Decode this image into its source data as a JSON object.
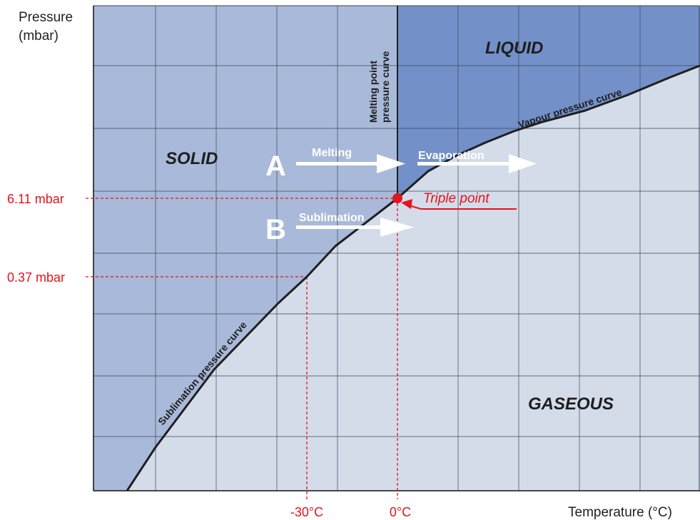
{
  "diagram": {
    "y_axis_title": [
      "Pressure",
      "(mbar)"
    ],
    "x_axis_title": "Temperature (°C)",
    "pressure_labels": [
      "6.11 mbar",
      "0.37 mbar"
    ],
    "temperature_labels": [
      "-30°C",
      "0°C"
    ],
    "regions": {
      "solid": "SOLID",
      "liquid": "LIQUID",
      "gaseous": "GASEOUS"
    },
    "curves": {
      "melting": [
        "Melting point",
        "pressure curve"
      ],
      "vapour": "Vapour pressure curve",
      "sublimation": "Sublimation pressure curve"
    },
    "paths": {
      "a_letter": "A",
      "b_letter": "B",
      "melting": "Melting",
      "evaporation": "Evaporation",
      "sublimation": "Sublimation"
    },
    "triple_point": "Triple point",
    "colors": {
      "solid": "#a9b9d9",
      "liquid": "#7390c8",
      "gas": "#d4dcea",
      "grid": "#3c4656",
      "curve": "#1f1f1f",
      "marker": "#e3141c"
    }
  }
}
